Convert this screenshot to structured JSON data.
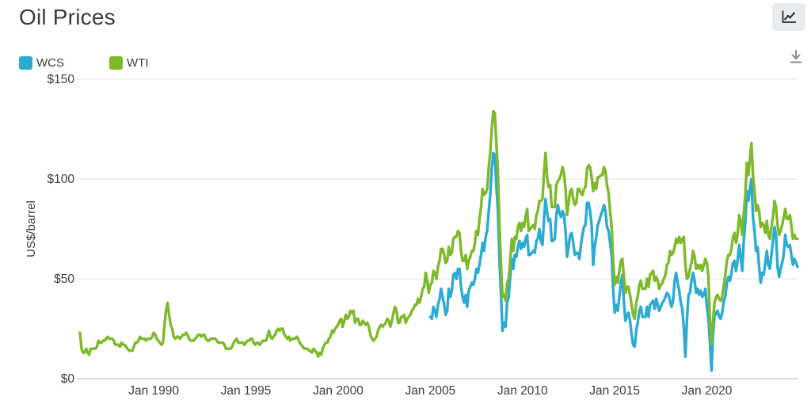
{
  "header": {
    "title": "Oil Prices"
  },
  "toolbar": {
    "chart_type_button": {
      "icon": "line-chart-icon"
    },
    "download_button": {
      "icon": "download-icon"
    }
  },
  "legend": {
    "items": [
      {
        "label": "WCS",
        "color": "#29ABD4"
      },
      {
        "label": "WTI",
        "color": "#7DB928"
      }
    ]
  },
  "colors": {
    "grid": "#E4E4E4",
    "axis": "#CFCFCF",
    "text": "#3C3C3C",
    "button_bg": "#E8ECEF",
    "button_icon": "#2D2D2D",
    "download_icon": "#888F93"
  },
  "chart_data": {
    "type": "line",
    "title": "Oil Prices",
    "ylabel": "US$/barrel",
    "xlabel": "",
    "ylim": [
      0,
      150
    ],
    "x_range": [
      "Jan 1986",
      "Dec 2024"
    ],
    "frequency": "monthly",
    "grid": "horizontal",
    "legend_position": "top-left",
    "y_ticks": [
      {
        "value": 0,
        "label": "$0"
      },
      {
        "value": 50,
        "label": "$50"
      },
      {
        "value": 100,
        "label": "$100"
      },
      {
        "value": 150,
        "label": "$150"
      }
    ],
    "x_ticks": [
      {
        "year": 1990,
        "label": "Jan 1990"
      },
      {
        "year": 1995,
        "label": "Jan 1995"
      },
      {
        "year": 2000,
        "label": "Jan 2000"
      },
      {
        "year": 2005,
        "label": "Jan 2005"
      },
      {
        "year": 2010,
        "label": "Jan 2010"
      },
      {
        "year": 2015,
        "label": "Jan 2015"
      },
      {
        "year": 2020,
        "label": "Jan 2020"
      }
    ],
    "series": [
      {
        "name": "WCS",
        "color": "#29ABD4",
        "start_year": 2005,
        "start_month": 1,
        "values": [
          31,
          30,
          36,
          34,
          31,
          37,
          40,
          45,
          41,
          37,
          32,
          34,
          45,
          41,
          44,
          52,
          53,
          50,
          55,
          55,
          46,
          41,
          38,
          42,
          36,
          44,
          46,
          48,
          47,
          50,
          55,
          53,
          57,
          62,
          68,
          64,
          71,
          74,
          84,
          92,
          105,
          113,
          112,
          96,
          84,
          60,
          42,
          24,
          28,
          26,
          38,
          41,
          51,
          60,
          55,
          62,
          61,
          66,
          69,
          65,
          68,
          66,
          70,
          72,
          62,
          62,
          63,
          64,
          63,
          69,
          70,
          75,
          69,
          67,
          80,
          90,
          83,
          79,
          80,
          69,
          69,
          70,
          82,
          87,
          83,
          81,
          84,
          82,
          74,
          61,
          66,
          72,
          73,
          68,
          62,
          63,
          63,
          60,
          67,
          72,
          76,
          77,
          88,
          88,
          84,
          77,
          57,
          66,
          71,
          77,
          79,
          82,
          84,
          87,
          84,
          76,
          74,
          68,
          62,
          45,
          33,
          37,
          34,
          41,
          48,
          52,
          38,
          29,
          32,
          33,
          29,
          22,
          17,
          16,
          24,
          28,
          34,
          36,
          31,
          31,
          31,
          36,
          31,
          37,
          38,
          39,
          35,
          40,
          37,
          34,
          36,
          38,
          39,
          41,
          43,
          42,
          39,
          36,
          39,
          49,
          53,
          48,
          44,
          38,
          35,
          26,
          11,
          29,
          42,
          43,
          49,
          53,
          49,
          43,
          45,
          42,
          44,
          41,
          42,
          45,
          36,
          30,
          18,
          4,
          22,
          31,
          33,
          34,
          31,
          30,
          33,
          39,
          41,
          48,
          51,
          49,
          53,
          58,
          59,
          54,
          59,
          67,
          61,
          54,
          69,
          78,
          94,
          89,
          95,
          100,
          81,
          74,
          64,
          66,
          56,
          48,
          53,
          52,
          58,
          64,
          57,
          55,
          62,
          69,
          76,
          72,
          56,
          51,
          55,
          58,
          62,
          72,
          67,
          66,
          67,
          62,
          57,
          60,
          58,
          56
        ]
      },
      {
        "name": "WTI",
        "color": "#7DB928",
        "start_year": 1986,
        "start_month": 1,
        "values": [
          23,
          15,
          13,
          13,
          15,
          13,
          12,
          15,
          15,
          15,
          15,
          16,
          19,
          18,
          18,
          19,
          19,
          20,
          21,
          20,
          20,
          20,
          19,
          17,
          17,
          17,
          16,
          18,
          17,
          17,
          16,
          15,
          14,
          14,
          14,
          16,
          18,
          18,
          19,
          21,
          20,
          20,
          20,
          19,
          20,
          20,
          20,
          21,
          23,
          22,
          20,
          19,
          18,
          17,
          18,
          27,
          34,
          38,
          32,
          27,
          25,
          21,
          20,
          21,
          21,
          20,
          21,
          22,
          22,
          23,
          22,
          20,
          19,
          19,
          19,
          20,
          21,
          22,
          22,
          21,
          22,
          22,
          20,
          19,
          19,
          20,
          20,
          20,
          20,
          19,
          18,
          18,
          18,
          18,
          17,
          15,
          15,
          15,
          15,
          16,
          18,
          19,
          20,
          18,
          18,
          18,
          18,
          17,
          18,
          19,
          19,
          20,
          20,
          18,
          17,
          18,
          18,
          17,
          18,
          19,
          19,
          19,
          21,
          24,
          21,
          20,
          21,
          22,
          24,
          25,
          24,
          25,
          25,
          22,
          21,
          20,
          21,
          19,
          20,
          20,
          20,
          21,
          20,
          18,
          17,
          16,
          15,
          15,
          15,
          14,
          14,
          13,
          15,
          14,
          13,
          11,
          13,
          12,
          15,
          17,
          18,
          18,
          20,
          21,
          24,
          23,
          25,
          26,
          27,
          29,
          30,
          26,
          29,
          32,
          30,
          31,
          34,
          33,
          34,
          28,
          30,
          30,
          27,
          27,
          29,
          28,
          27,
          28,
          26,
          22,
          20,
          19,
          20,
          21,
          24,
          26,
          27,
          26,
          27,
          28,
          30,
          29,
          26,
          29,
          33,
          36,
          34,
          28,
          28,
          31,
          31,
          32,
          28,
          30,
          31,
          32,
          34,
          35,
          37,
          37,
          40,
          38,
          41,
          45,
          46,
          53,
          49,
          43,
          47,
          48,
          54,
          53,
          50,
          56,
          59,
          65,
          65,
          62,
          58,
          59,
          66,
          62,
          63,
          70,
          71,
          71,
          74,
          73,
          64,
          59,
          59,
          62,
          55,
          59,
          61,
          64,
          64,
          68,
          74,
          72,
          80,
          86,
          95,
          92,
          93,
          95,
          106,
          113,
          125,
          134,
          133,
          117,
          104,
          77,
          57,
          41,
          42,
          39,
          48,
          50,
          59,
          70,
          64,
          71,
          70,
          76,
          78,
          74,
          78,
          76,
          81,
          85,
          74,
          75,
          76,
          77,
          75,
          82,
          84,
          89,
          89,
          90,
          103,
          113,
          101,
          96,
          97,
          86,
          86,
          86,
          97,
          99,
          100,
          102,
          106,
          103,
          95,
          82,
          88,
          94,
          95,
          90,
          87,
          88,
          95,
          95,
          93,
          92,
          95,
          96,
          105,
          107,
          106,
          101,
          94,
          98,
          95,
          101,
          101,
          102,
          102,
          106,
          104,
          97,
          93,
          84,
          76,
          59,
          47,
          51,
          48,
          54,
          59,
          60,
          51,
          43,
          46,
          46,
          42,
          37,
          32,
          30,
          38,
          41,
          47,
          49,
          45,
          45,
          45,
          50,
          46,
          52,
          53,
          54,
          49,
          51,
          49,
          45,
          47,
          48,
          50,
          52,
          57,
          58,
          64,
          62,
          63,
          66,
          70,
          68,
          71,
          68,
          70,
          71,
          57,
          50,
          51,
          55,
          58,
          64,
          61,
          55,
          57,
          55,
          57,
          54,
          57,
          60,
          58,
          51,
          29,
          17,
          29,
          38,
          41,
          42,
          40,
          39,
          41,
          47,
          52,
          59,
          62,
          62,
          65,
          71,
          73,
          68,
          72,
          82,
          79,
          72,
          83,
          92,
          108,
          102,
          110,
          118,
          102,
          94,
          84,
          87,
          84,
          76,
          78,
          77,
          73,
          79,
          72,
          70,
          76,
          81,
          89,
          86,
          77,
          72,
          74,
          77,
          81,
          85,
          80,
          80,
          82,
          77,
          70,
          72,
          70,
          70
        ]
      }
    ]
  }
}
